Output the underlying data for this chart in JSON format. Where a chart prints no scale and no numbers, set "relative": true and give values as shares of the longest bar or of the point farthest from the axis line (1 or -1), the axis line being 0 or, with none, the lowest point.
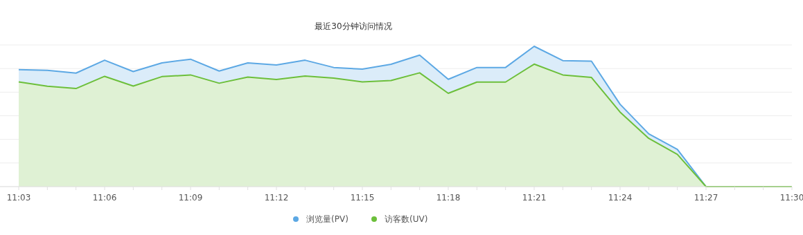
{
  "chart_data": {
    "type": "area",
    "title": "最近30分钟访问情况",
    "relative": true,
    "grid": true,
    "legend": "bottom",
    "marker": "none",
    "categories": [
      "11:03",
      null,
      null,
      "11:06",
      null,
      null,
      "11:09",
      null,
      null,
      "11:12",
      null,
      null,
      "11:15",
      null,
      null,
      "11:18",
      null,
      null,
      "11:21",
      null,
      null,
      "11:24",
      null,
      null,
      "11:27",
      null,
      null,
      "11:30"
    ],
    "series": [
      {
        "name": "浏览量(PV)",
        "color": "#5ca8e4",
        "values": [
          0.834,
          0.829,
          0.809,
          0.901,
          0.82,
          0.882,
          0.908,
          0.824,
          0.882,
          0.867,
          0.901,
          0.849,
          0.837,
          0.872,
          0.937,
          0.765,
          0.849,
          0.849,
          1,
          0.898,
          0.894,
          0.587,
          0.376,
          0.265,
          0,
          0,
          0,
          0
        ]
      },
      {
        "name": "访客数(UV)",
        "color": "#6cbf3a",
        "values": [
          0.746,
          0.715,
          0.699,
          0.786,
          0.717,
          0.784,
          0.796,
          0.737,
          0.781,
          0.763,
          0.788,
          0.773,
          0.746,
          0.756,
          0.811,
          0.665,
          0.745,
          0.745,
          0.873,
          0.796,
          0.778,
          0.531,
          0.344,
          0.23,
          0,
          0,
          0,
          0
        ]
      }
    ]
  }
}
